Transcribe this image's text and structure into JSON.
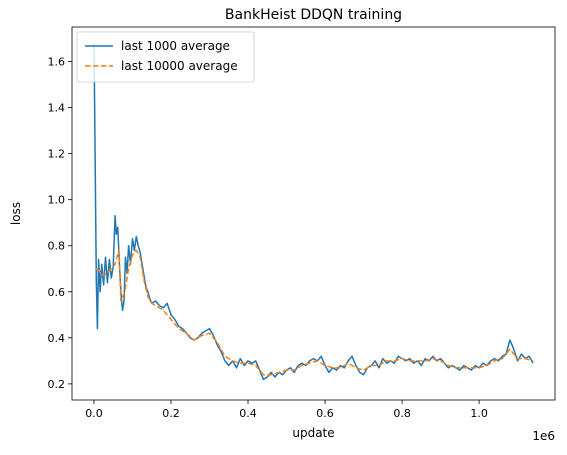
{
  "chart_data": {
    "type": "line",
    "title": "BankHeist DDQN training",
    "xlabel": "update",
    "ylabel": "loss",
    "x_offset_label": "1e6",
    "xlim": [
      -0.057,
      1.197
    ],
    "ylim": [
      0.13,
      1.75
    ],
    "xticks": [
      0.0,
      0.2,
      0.4,
      0.6,
      0.8,
      1.0
    ],
    "xtick_labels": [
      "0.0",
      "0.2",
      "0.4",
      "0.6",
      "0.8",
      "1.0"
    ],
    "yticks": [
      0.2,
      0.4,
      0.6,
      0.8,
      1.0,
      1.2,
      1.4,
      1.6
    ],
    "ytick_labels": [
      "0.2",
      "0.4",
      "0.6",
      "0.8",
      "1.0",
      "1.2",
      "1.4",
      "1.6"
    ],
    "grid": false,
    "legend_position": "top-left",
    "series": [
      {
        "name": "last 1000 average",
        "color": "#1f77b4",
        "style": "solid",
        "points": [
          [
            0.0,
            1.68
          ],
          [
            0.003,
            1.2
          ],
          [
            0.006,
            0.65
          ],
          [
            0.009,
            0.44
          ],
          [
            0.012,
            0.74
          ],
          [
            0.016,
            0.6
          ],
          [
            0.02,
            0.72
          ],
          [
            0.025,
            0.63
          ],
          [
            0.03,
            0.75
          ],
          [
            0.035,
            0.64
          ],
          [
            0.04,
            0.74
          ],
          [
            0.045,
            0.66
          ],
          [
            0.05,
            0.71
          ],
          [
            0.055,
            0.93
          ],
          [
            0.058,
            0.85
          ],
          [
            0.062,
            0.88
          ],
          [
            0.066,
            0.72
          ],
          [
            0.07,
            0.6
          ],
          [
            0.074,
            0.52
          ],
          [
            0.078,
            0.56
          ],
          [
            0.082,
            0.75
          ],
          [
            0.086,
            0.68
          ],
          [
            0.09,
            0.8
          ],
          [
            0.095,
            0.72
          ],
          [
            0.1,
            0.83
          ],
          [
            0.105,
            0.78
          ],
          [
            0.11,
            0.84
          ],
          [
            0.115,
            0.8
          ],
          [
            0.12,
            0.77
          ],
          [
            0.125,
            0.72
          ],
          [
            0.13,
            0.67
          ],
          [
            0.135,
            0.62
          ],
          [
            0.14,
            0.6
          ],
          [
            0.145,
            0.57
          ],
          [
            0.15,
            0.55
          ],
          [
            0.16,
            0.56
          ],
          [
            0.17,
            0.54
          ],
          [
            0.18,
            0.53
          ],
          [
            0.19,
            0.55
          ],
          [
            0.2,
            0.5
          ],
          [
            0.21,
            0.48
          ],
          [
            0.22,
            0.45
          ],
          [
            0.23,
            0.44
          ],
          [
            0.24,
            0.42
          ],
          [
            0.25,
            0.4
          ],
          [
            0.26,
            0.39
          ],
          [
            0.27,
            0.4
          ],
          [
            0.28,
            0.42
          ],
          [
            0.29,
            0.43
          ],
          [
            0.3,
            0.44
          ],
          [
            0.31,
            0.41
          ],
          [
            0.32,
            0.37
          ],
          [
            0.33,
            0.34
          ],
          [
            0.34,
            0.3
          ],
          [
            0.35,
            0.28
          ],
          [
            0.36,
            0.3
          ],
          [
            0.37,
            0.27
          ],
          [
            0.38,
            0.31
          ],
          [
            0.39,
            0.28
          ],
          [
            0.4,
            0.3
          ],
          [
            0.41,
            0.29
          ],
          [
            0.42,
            0.3
          ],
          [
            0.43,
            0.26
          ],
          [
            0.44,
            0.22
          ],
          [
            0.45,
            0.23
          ],
          [
            0.46,
            0.25
          ],
          [
            0.47,
            0.23
          ],
          [
            0.48,
            0.25
          ],
          [
            0.49,
            0.24
          ],
          [
            0.5,
            0.26
          ],
          [
            0.51,
            0.27
          ],
          [
            0.52,
            0.25
          ],
          [
            0.53,
            0.28
          ],
          [
            0.54,
            0.29
          ],
          [
            0.55,
            0.28
          ],
          [
            0.56,
            0.3
          ],
          [
            0.57,
            0.31
          ],
          [
            0.58,
            0.3
          ],
          [
            0.59,
            0.32
          ],
          [
            0.6,
            0.28
          ],
          [
            0.61,
            0.25
          ],
          [
            0.62,
            0.27
          ],
          [
            0.63,
            0.26
          ],
          [
            0.64,
            0.28
          ],
          [
            0.65,
            0.27
          ],
          [
            0.66,
            0.3
          ],
          [
            0.67,
            0.32
          ],
          [
            0.68,
            0.28
          ],
          [
            0.69,
            0.25
          ],
          [
            0.7,
            0.24
          ],
          [
            0.71,
            0.27
          ],
          [
            0.72,
            0.28
          ],
          [
            0.73,
            0.3
          ],
          [
            0.74,
            0.27
          ],
          [
            0.75,
            0.31
          ],
          [
            0.76,
            0.29
          ],
          [
            0.77,
            0.3
          ],
          [
            0.78,
            0.29
          ],
          [
            0.79,
            0.32
          ],
          [
            0.8,
            0.31
          ],
          [
            0.81,
            0.3
          ],
          [
            0.82,
            0.31
          ],
          [
            0.83,
            0.29
          ],
          [
            0.84,
            0.3
          ],
          [
            0.85,
            0.28
          ],
          [
            0.86,
            0.31
          ],
          [
            0.87,
            0.3
          ],
          [
            0.88,
            0.32
          ],
          [
            0.89,
            0.3
          ],
          [
            0.9,
            0.31
          ],
          [
            0.91,
            0.29
          ],
          [
            0.92,
            0.27
          ],
          [
            0.93,
            0.28
          ],
          [
            0.94,
            0.27
          ],
          [
            0.95,
            0.26
          ],
          [
            0.96,
            0.28
          ],
          [
            0.97,
            0.27
          ],
          [
            0.98,
            0.26
          ],
          [
            0.99,
            0.28
          ],
          [
            1.0,
            0.27
          ],
          [
            1.01,
            0.29
          ],
          [
            1.02,
            0.28
          ],
          [
            1.03,
            0.3
          ],
          [
            1.04,
            0.31
          ],
          [
            1.05,
            0.3
          ],
          [
            1.06,
            0.32
          ],
          [
            1.07,
            0.33
          ],
          [
            1.08,
            0.39
          ],
          [
            1.085,
            0.37
          ],
          [
            1.09,
            0.35
          ],
          [
            1.1,
            0.3
          ],
          [
            1.11,
            0.33
          ],
          [
            1.12,
            0.31
          ],
          [
            1.13,
            0.32
          ],
          [
            1.14,
            0.29
          ]
        ]
      },
      {
        "name": "last 10000 average",
        "color": "#ff7f0e",
        "style": "dashed",
        "points": [
          [
            0.005,
            0.7
          ],
          [
            0.015,
            0.69
          ],
          [
            0.025,
            0.67
          ],
          [
            0.035,
            0.68
          ],
          [
            0.045,
            0.7
          ],
          [
            0.055,
            0.72
          ],
          [
            0.065,
            0.78
          ],
          [
            0.07,
            0.56
          ],
          [
            0.08,
            0.6
          ],
          [
            0.09,
            0.7
          ],
          [
            0.1,
            0.76
          ],
          [
            0.11,
            0.78
          ],
          [
            0.12,
            0.75
          ],
          [
            0.13,
            0.65
          ],
          [
            0.14,
            0.58
          ],
          [
            0.15,
            0.55
          ],
          [
            0.16,
            0.54
          ],
          [
            0.17,
            0.53
          ],
          [
            0.18,
            0.52
          ],
          [
            0.19,
            0.5
          ],
          [
            0.2,
            0.48
          ],
          [
            0.22,
            0.44
          ],
          [
            0.24,
            0.42
          ],
          [
            0.26,
            0.39
          ],
          [
            0.28,
            0.41
          ],
          [
            0.3,
            0.42
          ],
          [
            0.32,
            0.38
          ],
          [
            0.34,
            0.32
          ],
          [
            0.36,
            0.3
          ],
          [
            0.38,
            0.29
          ],
          [
            0.4,
            0.29
          ],
          [
            0.42,
            0.28
          ],
          [
            0.44,
            0.24
          ],
          [
            0.46,
            0.24
          ],
          [
            0.48,
            0.25
          ],
          [
            0.5,
            0.26
          ],
          [
            0.52,
            0.26
          ],
          [
            0.54,
            0.28
          ],
          [
            0.56,
            0.29
          ],
          [
            0.58,
            0.3
          ],
          [
            0.6,
            0.28
          ],
          [
            0.62,
            0.27
          ],
          [
            0.64,
            0.27
          ],
          [
            0.66,
            0.29
          ],
          [
            0.68,
            0.27
          ],
          [
            0.7,
            0.26
          ],
          [
            0.72,
            0.28
          ],
          [
            0.74,
            0.28
          ],
          [
            0.76,
            0.3
          ],
          [
            0.78,
            0.3
          ],
          [
            0.8,
            0.31
          ],
          [
            0.82,
            0.3
          ],
          [
            0.84,
            0.3
          ],
          [
            0.86,
            0.3
          ],
          [
            0.88,
            0.31
          ],
          [
            0.9,
            0.3
          ],
          [
            0.92,
            0.28
          ],
          [
            0.94,
            0.27
          ],
          [
            0.96,
            0.27
          ],
          [
            0.98,
            0.27
          ],
          [
            1.0,
            0.27
          ],
          [
            1.02,
            0.28
          ],
          [
            1.04,
            0.3
          ],
          [
            1.06,
            0.31
          ],
          [
            1.08,
            0.35
          ],
          [
            1.1,
            0.31
          ],
          [
            1.12,
            0.31
          ],
          [
            1.14,
            0.3
          ]
        ]
      }
    ]
  }
}
